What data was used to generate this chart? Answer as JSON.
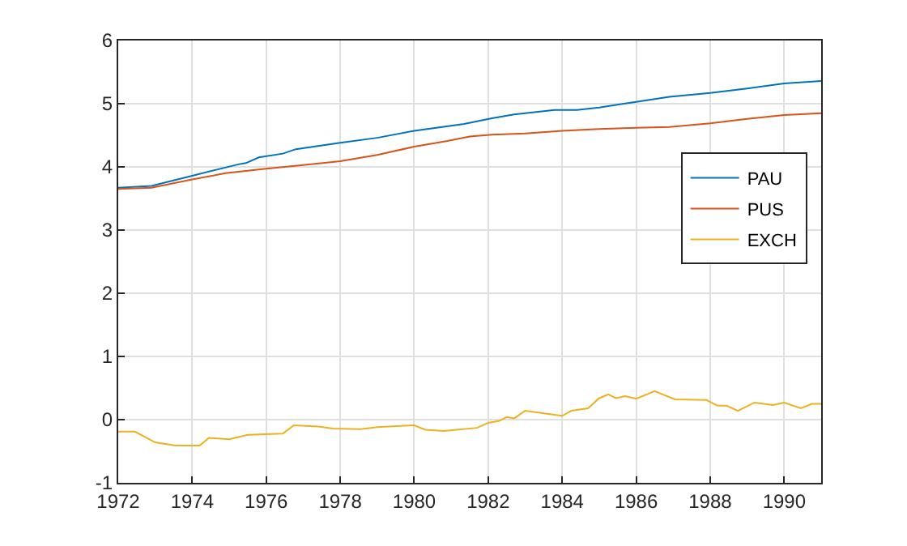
{
  "chart_data": {
    "type": "line",
    "xlim": [
      1972,
      1991
    ],
    "xticks": [
      1972,
      1974,
      1976,
      1978,
      1980,
      1982,
      1984,
      1986,
      1988,
      1990
    ],
    "ylim": [
      -1,
      6
    ],
    "yticks": [
      -1,
      0,
      1,
      2,
      3,
      4,
      5,
      6
    ],
    "grid": true,
    "legend": "right",
    "line_style": "solid",
    "marker": "none",
    "series": [
      {
        "name": "PAU",
        "color": "#0072bd",
        "x": [
          1972,
          1972.9,
          1974,
          1975.25,
          1975.45,
          1975.8,
          1976.45,
          1976.8,
          1978,
          1979,
          1980,
          1981.35,
          1982.1,
          1982.7,
          1983.8,
          1984.4,
          1985,
          1986,
          1986.9,
          1988,
          1989,
          1990,
          1991
        ],
        "values": [
          3.67,
          3.7,
          3.86,
          4.04,
          4.06,
          4.15,
          4.21,
          4.28,
          4.38,
          4.46,
          4.57,
          4.68,
          4.77,
          4.83,
          4.9,
          4.9,
          4.94,
          5.03,
          5.11,
          5.17,
          5.24,
          5.32,
          5.36
        ]
      },
      {
        "name": "PUS",
        "color": "#d95319",
        "x": [
          1972,
          1972.9,
          1974,
          1974.9,
          1976,
          1977,
          1978,
          1979,
          1980,
          1980.9,
          1981.5,
          1982.1,
          1983,
          1984,
          1985,
          1986,
          1986.9,
          1988,
          1989,
          1990,
          1991
        ],
        "values": [
          3.65,
          3.67,
          3.8,
          3.9,
          3.97,
          4.03,
          4.09,
          4.19,
          4.32,
          4.41,
          4.48,
          4.51,
          4.53,
          4.57,
          4.6,
          4.62,
          4.63,
          4.69,
          4.76,
          4.82,
          4.85
        ]
      },
      {
        "name": "EXCH",
        "color": "#edb120",
        "x": [
          1972,
          1972.45,
          1973,
          1973.55,
          1974.2,
          1974.45,
          1975,
          1975.5,
          1976.45,
          1976.75,
          1977.4,
          1977.8,
          1978.55,
          1979,
          1980,
          1980.3,
          1980.8,
          1981.7,
          1982,
          1982.3,
          1982.5,
          1982.7,
          1983,
          1983.5,
          1984,
          1984.25,
          1984.7,
          1985,
          1985.25,
          1985.45,
          1985.7,
          1986,
          1986.5,
          1987.05,
          1987.9,
          1988.2,
          1988.45,
          1988.75,
          1989.2,
          1989.7,
          1990,
          1990.45,
          1990.75,
          1991
        ],
        "values": [
          -0.19,
          -0.19,
          -0.36,
          -0.41,
          -0.41,
          -0.29,
          -0.31,
          -0.24,
          -0.22,
          -0.09,
          -0.11,
          -0.14,
          -0.15,
          -0.12,
          -0.09,
          -0.16,
          -0.18,
          -0.13,
          -0.05,
          -0.02,
          0.04,
          0.02,
          0.14,
          0.1,
          0.06,
          0.14,
          0.18,
          0.34,
          0.4,
          0.34,
          0.37,
          0.33,
          0.45,
          0.32,
          0.31,
          0.22,
          0.22,
          0.14,
          0.27,
          0.23,
          0.27,
          0.18,
          0.25,
          0.25
        ]
      }
    ]
  }
}
